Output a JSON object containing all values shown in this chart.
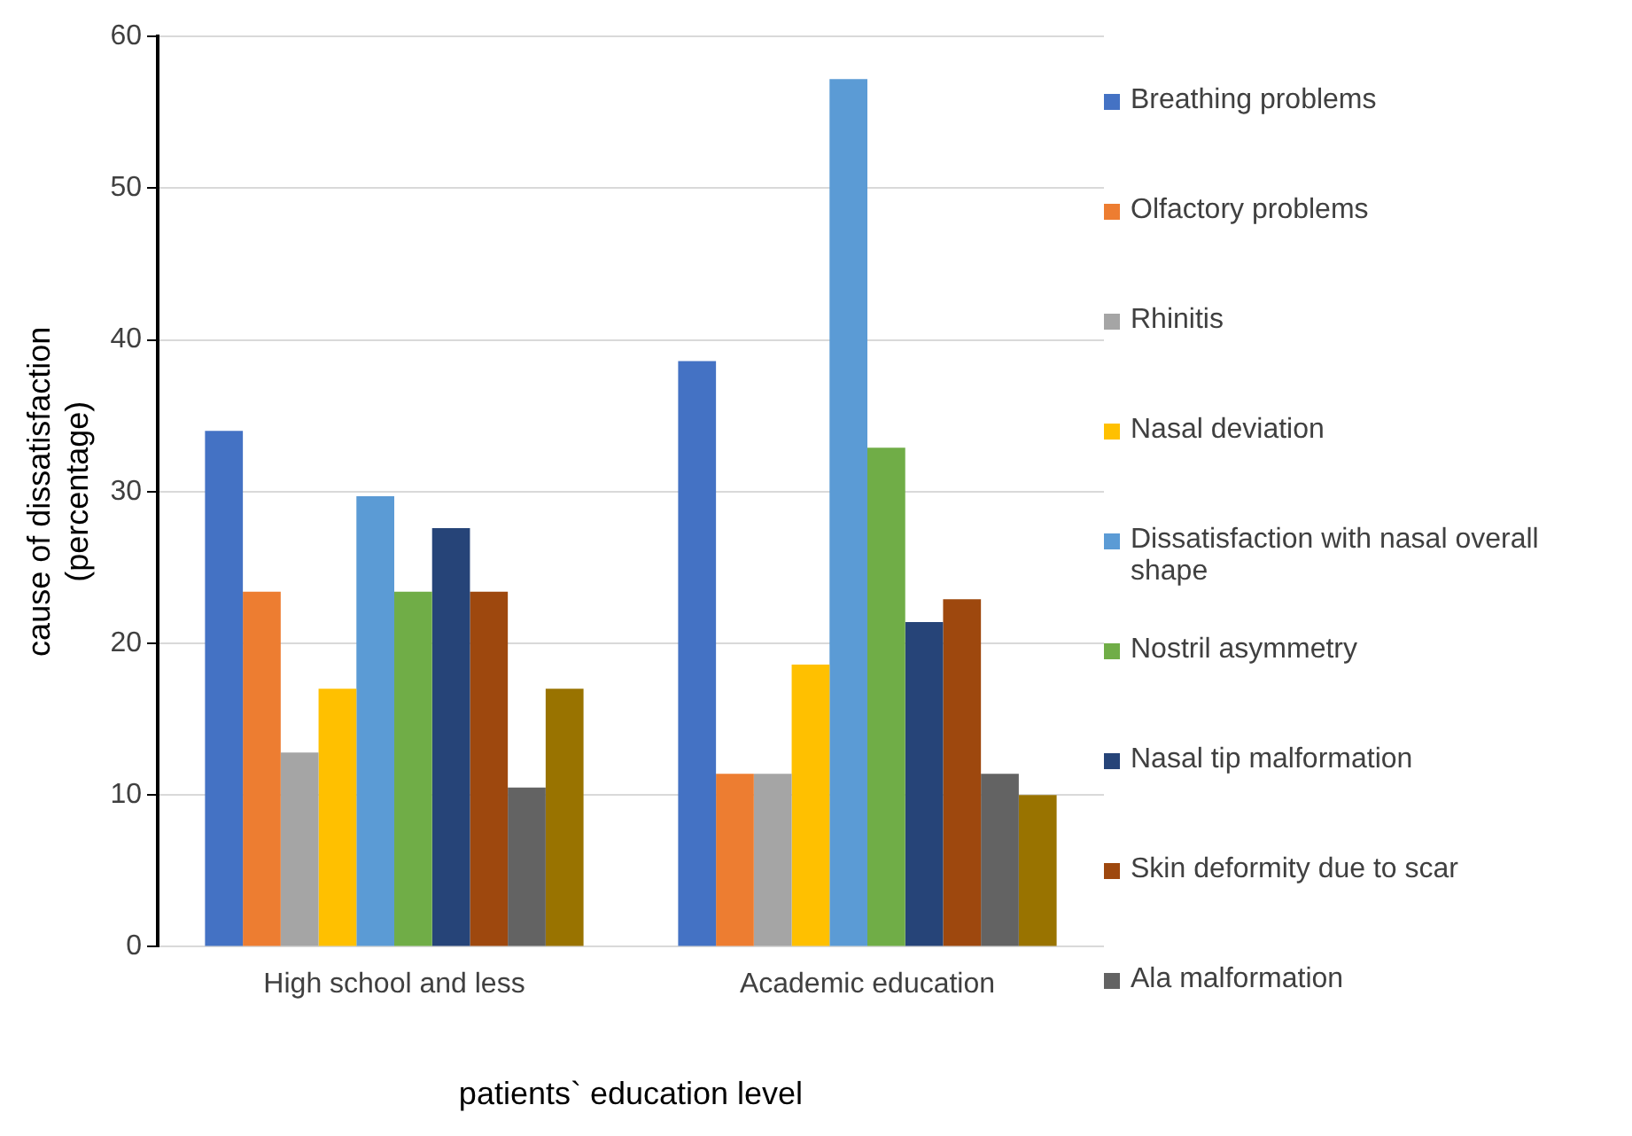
{
  "chart_data": {
    "type": "bar",
    "xlabel": "patients` education level",
    "ylabel": "cause of dissatisfaction (percentage)",
    "categories": [
      "High school and less",
      "Academic education"
    ],
    "series": [
      {
        "name": "Breathing problems",
        "color": "#4472c4",
        "values": [
          34,
          38.6
        ]
      },
      {
        "name": "Olfactory problems",
        "color": "#ed7d31",
        "values": [
          23.4,
          11.4
        ]
      },
      {
        "name": "Rhinitis",
        "color": "#a5a5a5",
        "values": [
          12.8,
          11.4
        ]
      },
      {
        "name": "Nasal deviation",
        "color": "#ffc000",
        "values": [
          17,
          18.6
        ]
      },
      {
        "name": "Dissatisfaction with nasal overall shape",
        "color": "#5b9bd5",
        "values": [
          29.7,
          57.2
        ]
      },
      {
        "name": "Nostril asymmetry",
        "color": "#70ad47",
        "values": [
          23.4,
          32.9
        ]
      },
      {
        "name": "Nasal tip malformation",
        "color": "#264478",
        "values": [
          27.6,
          21.4
        ]
      },
      {
        "name": "Skin deformity due to scar",
        "color": "#9e480e",
        "values": [
          23.4,
          22.9
        ]
      },
      {
        "name": "Ala malformation",
        "color": "#636363",
        "values": [
          10.5,
          11.4
        ]
      },
      {
        "color": "#997300",
        "values": [
          17,
          10
        ]
      }
    ],
    "ylim": [
      0,
      60
    ],
    "yticks": [
      0,
      10,
      20,
      30,
      40,
      50,
      60
    ],
    "grid": "y",
    "legend": "right"
  }
}
